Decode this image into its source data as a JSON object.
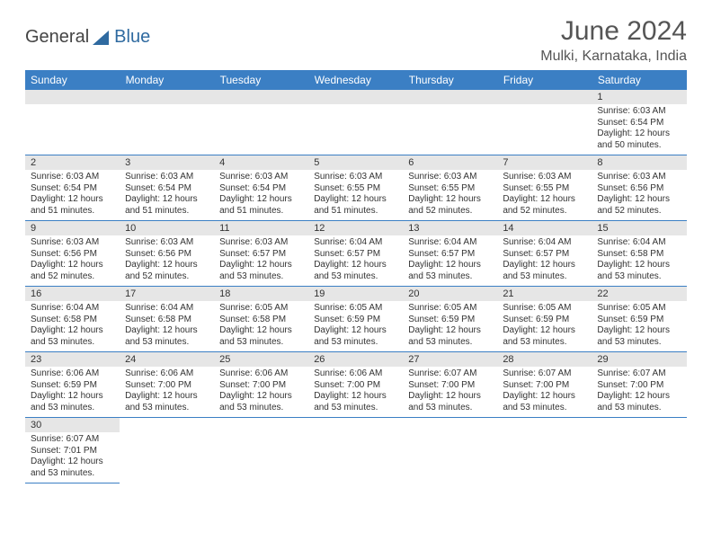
{
  "brand": {
    "part1": "General",
    "part2": "Blue"
  },
  "title": "June 2024",
  "subtitle": "Mulki, Karnataka, India",
  "colors": {
    "header_bg": "#3b7fc4",
    "header_text": "#ffffff",
    "daynum_bg": "#e6e6e6",
    "border": "#3b7fc4",
    "text": "#333333"
  },
  "weekdays": [
    "Sunday",
    "Monday",
    "Tuesday",
    "Wednesday",
    "Thursday",
    "Friday",
    "Saturday"
  ],
  "weeks": [
    [
      null,
      null,
      null,
      null,
      null,
      null,
      {
        "n": "1",
        "sr": "6:03 AM",
        "ss": "6:54 PM",
        "dl": "12 hours and 50 minutes."
      }
    ],
    [
      {
        "n": "2",
        "sr": "6:03 AM",
        "ss": "6:54 PM",
        "dl": "12 hours and 51 minutes."
      },
      {
        "n": "3",
        "sr": "6:03 AM",
        "ss": "6:54 PM",
        "dl": "12 hours and 51 minutes."
      },
      {
        "n": "4",
        "sr": "6:03 AM",
        "ss": "6:54 PM",
        "dl": "12 hours and 51 minutes."
      },
      {
        "n": "5",
        "sr": "6:03 AM",
        "ss": "6:55 PM",
        "dl": "12 hours and 51 minutes."
      },
      {
        "n": "6",
        "sr": "6:03 AM",
        "ss": "6:55 PM",
        "dl": "12 hours and 52 minutes."
      },
      {
        "n": "7",
        "sr": "6:03 AM",
        "ss": "6:55 PM",
        "dl": "12 hours and 52 minutes."
      },
      {
        "n": "8",
        "sr": "6:03 AM",
        "ss": "6:56 PM",
        "dl": "12 hours and 52 minutes."
      }
    ],
    [
      {
        "n": "9",
        "sr": "6:03 AM",
        "ss": "6:56 PM",
        "dl": "12 hours and 52 minutes."
      },
      {
        "n": "10",
        "sr": "6:03 AM",
        "ss": "6:56 PM",
        "dl": "12 hours and 52 minutes."
      },
      {
        "n": "11",
        "sr": "6:03 AM",
        "ss": "6:57 PM",
        "dl": "12 hours and 53 minutes."
      },
      {
        "n": "12",
        "sr": "6:04 AM",
        "ss": "6:57 PM",
        "dl": "12 hours and 53 minutes."
      },
      {
        "n": "13",
        "sr": "6:04 AM",
        "ss": "6:57 PM",
        "dl": "12 hours and 53 minutes."
      },
      {
        "n": "14",
        "sr": "6:04 AM",
        "ss": "6:57 PM",
        "dl": "12 hours and 53 minutes."
      },
      {
        "n": "15",
        "sr": "6:04 AM",
        "ss": "6:58 PM",
        "dl": "12 hours and 53 minutes."
      }
    ],
    [
      {
        "n": "16",
        "sr": "6:04 AM",
        "ss": "6:58 PM",
        "dl": "12 hours and 53 minutes."
      },
      {
        "n": "17",
        "sr": "6:04 AM",
        "ss": "6:58 PM",
        "dl": "12 hours and 53 minutes."
      },
      {
        "n": "18",
        "sr": "6:05 AM",
        "ss": "6:58 PM",
        "dl": "12 hours and 53 minutes."
      },
      {
        "n": "19",
        "sr": "6:05 AM",
        "ss": "6:59 PM",
        "dl": "12 hours and 53 minutes."
      },
      {
        "n": "20",
        "sr": "6:05 AM",
        "ss": "6:59 PM",
        "dl": "12 hours and 53 minutes."
      },
      {
        "n": "21",
        "sr": "6:05 AM",
        "ss": "6:59 PM",
        "dl": "12 hours and 53 minutes."
      },
      {
        "n": "22",
        "sr": "6:05 AM",
        "ss": "6:59 PM",
        "dl": "12 hours and 53 minutes."
      }
    ],
    [
      {
        "n": "23",
        "sr": "6:06 AM",
        "ss": "6:59 PM",
        "dl": "12 hours and 53 minutes."
      },
      {
        "n": "24",
        "sr": "6:06 AM",
        "ss": "7:00 PM",
        "dl": "12 hours and 53 minutes."
      },
      {
        "n": "25",
        "sr": "6:06 AM",
        "ss": "7:00 PM",
        "dl": "12 hours and 53 minutes."
      },
      {
        "n": "26",
        "sr": "6:06 AM",
        "ss": "7:00 PM",
        "dl": "12 hours and 53 minutes."
      },
      {
        "n": "27",
        "sr": "6:07 AM",
        "ss": "7:00 PM",
        "dl": "12 hours and 53 minutes."
      },
      {
        "n": "28",
        "sr": "6:07 AM",
        "ss": "7:00 PM",
        "dl": "12 hours and 53 minutes."
      },
      {
        "n": "29",
        "sr": "6:07 AM",
        "ss": "7:00 PM",
        "dl": "12 hours and 53 minutes."
      }
    ],
    [
      {
        "n": "30",
        "sr": "6:07 AM",
        "ss": "7:01 PM",
        "dl": "12 hours and 53 minutes."
      },
      null,
      null,
      null,
      null,
      null,
      null
    ]
  ],
  "labels": {
    "sunrise": "Sunrise: ",
    "sunset": "Sunset: ",
    "daylight": "Daylight: "
  }
}
